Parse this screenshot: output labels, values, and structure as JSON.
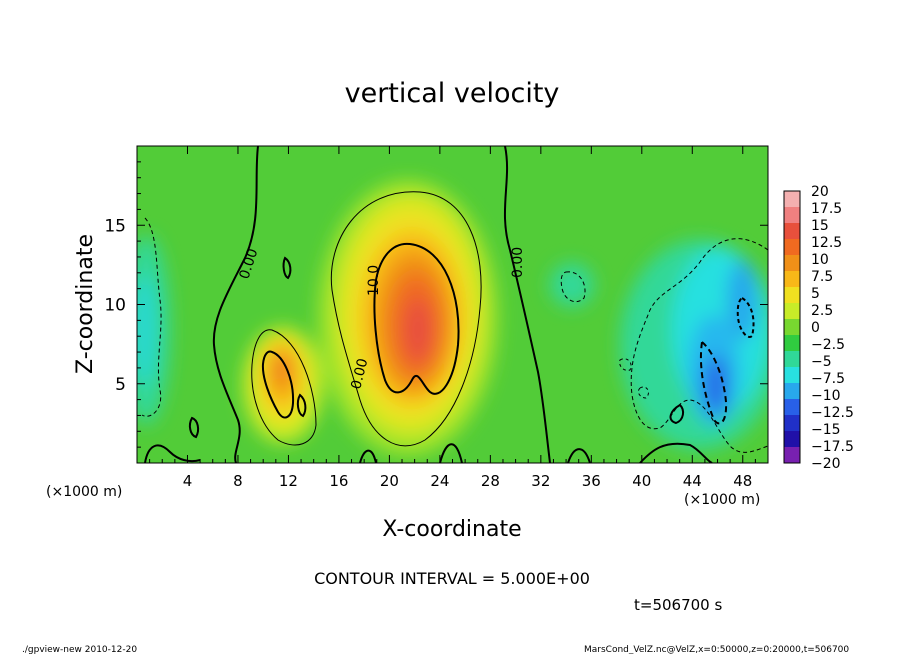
{
  "chart_data": {
    "type": "heatmap",
    "title": "vertical velocity",
    "xlabel": "X-coordinate",
    "ylabel": "Z-coordinate",
    "x_unit_label": "(×1000 m)",
    "y_unit_label": "(×1000 m)",
    "xlim": [
      0,
      50
    ],
    "ylim": [
      0,
      20
    ],
    "x_ticks": [
      "4",
      "8",
      "12",
      "16",
      "20",
      "24",
      "28",
      "32",
      "36",
      "40",
      "44",
      "48"
    ],
    "y_ticks": [
      "5",
      "10",
      "15"
    ],
    "colorbar": {
      "labels": [
        "20",
        "17.5",
        "15",
        "12.5",
        "10",
        "7.5",
        "5",
        "2.5",
        "0",
        "−2.5",
        "−5",
        "−7.5",
        "−10",
        "−12.5",
        "−15",
        "−17.5",
        "−20"
      ],
      "colors": [
        "#f4b0b0",
        "#f08080",
        "#e8503c",
        "#f06a20",
        "#f09018",
        "#f8b818",
        "#f0e020",
        "#c8ec28",
        "#78d830",
        "#30cc40",
        "#30d898",
        "#28e0e0",
        "#28a8ec",
        "#2860e8",
        "#2030c8",
        "#2010a8",
        "#7820b0"
      ]
    },
    "contour_labels": [
      "0.00",
      "10.0",
      "0.00",
      "0.00"
    ],
    "contour_interval_text": "CONTOUR INTERVAL = 5.000E+00",
    "time_text": "t=506700 s",
    "features": [
      {
        "x": 22,
        "z": 9.5,
        "value": 14
      },
      {
        "x": 11.5,
        "z": 5,
        "value": 11
      },
      {
        "x": 46,
        "z": 6,
        "value": -10
      },
      {
        "x": 47.5,
        "z": 9.5,
        "value": -9
      },
      {
        "x": 1,
        "z": 8,
        "value": -5
      }
    ]
  },
  "footer": {
    "left": "./gpview-new  2010-12-20",
    "right": "MarsCond_VelZ.nc@VelZ,x=0:50000,z=0:20000,t=506700"
  }
}
